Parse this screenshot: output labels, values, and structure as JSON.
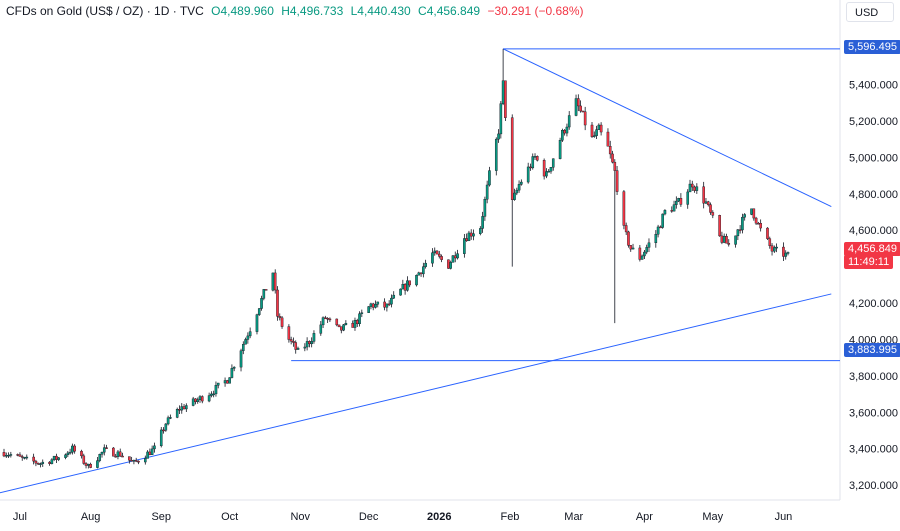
{
  "header": {
    "symbol": "CFDs on Gold (US$ / OZ) · 1D · TVC",
    "open": "O4,489.960",
    "high": "H4,496.733",
    "low": "L4,440.430",
    "close": "C4,456.849",
    "change": "−30.291 (−0.68%)"
  },
  "currency": "USD",
  "price_axis": {
    "ticks": [
      "5,400.000",
      "5,200.000",
      "5,000.000",
      "4,800.000",
      "4,600.000",
      "4,200.000",
      "4,000.000",
      "3,800.000",
      "3,600.000",
      "3,400.000",
      "3,200.000"
    ],
    "tick_values": [
      5400,
      5200,
      5000,
      4800,
      4600,
      4200,
      4000,
      3800,
      3600,
      3400,
      3200
    ]
  },
  "time_axis": {
    "labels": [
      "Jul",
      "Aug",
      "Sep",
      "Oct",
      "Nov",
      "Dec",
      "2026",
      "Feb",
      "Mar",
      "Apr",
      "May",
      "Jun"
    ]
  },
  "tags": {
    "high_level": "5,596.495",
    "low_level": "3,883.995",
    "last_price": "4,456.849",
    "countdown": "11:49:11"
  },
  "colors": {
    "up": "#089981",
    "down": "#f23645",
    "trendline": "#2962ff",
    "tag_blue": "#2a5fd6",
    "tag_red": "#f23645",
    "axis_text": "#131722",
    "border": "#e0e3eb"
  },
  "chart_data": {
    "type": "candlestick",
    "title": "CFDs on Gold (US$ / OZ)",
    "interval": "1D",
    "x_range": [
      "2025-06-24",
      "2026-06-03"
    ],
    "ylim": [
      3140,
      5700
    ],
    "grid": false,
    "price_series": [
      [
        "2025-06-24",
        3380
      ],
      [
        "2025-07-03",
        3340
      ],
      [
        "2025-07-10",
        3320
      ],
      [
        "2025-07-18",
        3350
      ],
      [
        "2025-07-24",
        3400
      ],
      [
        "2025-07-31",
        3300
      ],
      [
        "2025-08-07",
        3390
      ],
      [
        "2025-08-14",
        3370
      ],
      [
        "2025-08-20",
        3320
      ],
      [
        "2025-08-29",
        3400
      ],
      [
        "2025-09-03",
        3540
      ],
      [
        "2025-09-09",
        3620
      ],
      [
        "2025-09-16",
        3660
      ],
      [
        "2025-09-24",
        3720
      ],
      [
        "2025-09-30",
        3780
      ],
      [
        "2025-10-06",
        3950
      ],
      [
        "2025-10-10",
        4060
      ],
      [
        "2025-10-16",
        4250
      ],
      [
        "2025-10-20",
        4370
      ],
      [
        "2025-10-22",
        4130
      ],
      [
        "2025-10-27",
        4000
      ],
      [
        "2025-10-31",
        3930
      ],
      [
        "2025-11-05",
        3990
      ],
      [
        "2025-11-12",
        4120
      ],
      [
        "2025-11-18",
        4050
      ],
      [
        "2025-11-25",
        4090
      ],
      [
        "2025-12-02",
        4190
      ],
      [
        "2025-12-09",
        4180
      ],
      [
        "2025-12-16",
        4280
      ],
      [
        "2025-12-22",
        4350
      ],
      [
        "2025-12-29",
        4470
      ],
      [
        "2026-01-05",
        4410
      ],
      [
        "2026-01-12",
        4560
      ],
      [
        "2026-01-19",
        4620
      ],
      [
        "2026-01-23",
        4900
      ],
      [
        "2026-01-27",
        5150
      ],
      [
        "2026-01-29",
        5400
      ],
      [
        "2026-02-02",
        4750
      ],
      [
        "2026-02-05",
        4850
      ],
      [
        "2026-02-12",
        5000
      ],
      [
        "2026-02-17",
        4900
      ],
      [
        "2026-02-23",
        5100
      ],
      [
        "2026-03-02",
        5300
      ],
      [
        "2026-03-04",
        5250
      ],
      [
        "2026-03-09",
        5100
      ],
      [
        "2026-03-12",
        5150
      ],
      [
        "2026-03-16",
        5050
      ],
      [
        "2026-03-19",
        4920
      ],
      [
        "2026-03-23",
        4600
      ],
      [
        "2026-03-26",
        4500
      ],
      [
        "2026-03-30",
        4450
      ],
      [
        "2026-04-06",
        4580
      ],
      [
        "2026-04-10",
        4700
      ],
      [
        "2026-04-16",
        4750
      ],
      [
        "2026-04-22",
        4860
      ],
      [
        "2026-04-28",
        4750
      ],
      [
        "2026-05-04",
        4560
      ],
      [
        "2026-05-08",
        4520
      ],
      [
        "2026-05-14",
        4650
      ],
      [
        "2026-05-18",
        4720
      ],
      [
        "2026-05-22",
        4600
      ],
      [
        "2026-05-27",
        4490
      ],
      [
        "2026-06-01",
        4470
      ],
      [
        "2026-06-03",
        4457
      ]
    ],
    "notable_wicks": [
      {
        "date": "2026-02-02",
        "low": 4400
      },
      {
        "date": "2026-03-19",
        "low": 4090
      },
      {
        "date": "2026-01-29",
        "high": 5596.495
      }
    ],
    "horizontal_levels": [
      {
        "from": "2026-01-29",
        "price": 5596.495
      },
      {
        "from": "2025-10-28",
        "price": 3883.995
      }
    ],
    "trendlines": [
      {
        "from": [
          "2026-01-29",
          5596.495
        ],
        "to": [
          "2026-06-22",
          4730
        ]
      },
      {
        "from": [
          "2025-06-18",
          3145
        ],
        "to": [
          "2026-06-22",
          4250
        ]
      }
    ]
  }
}
